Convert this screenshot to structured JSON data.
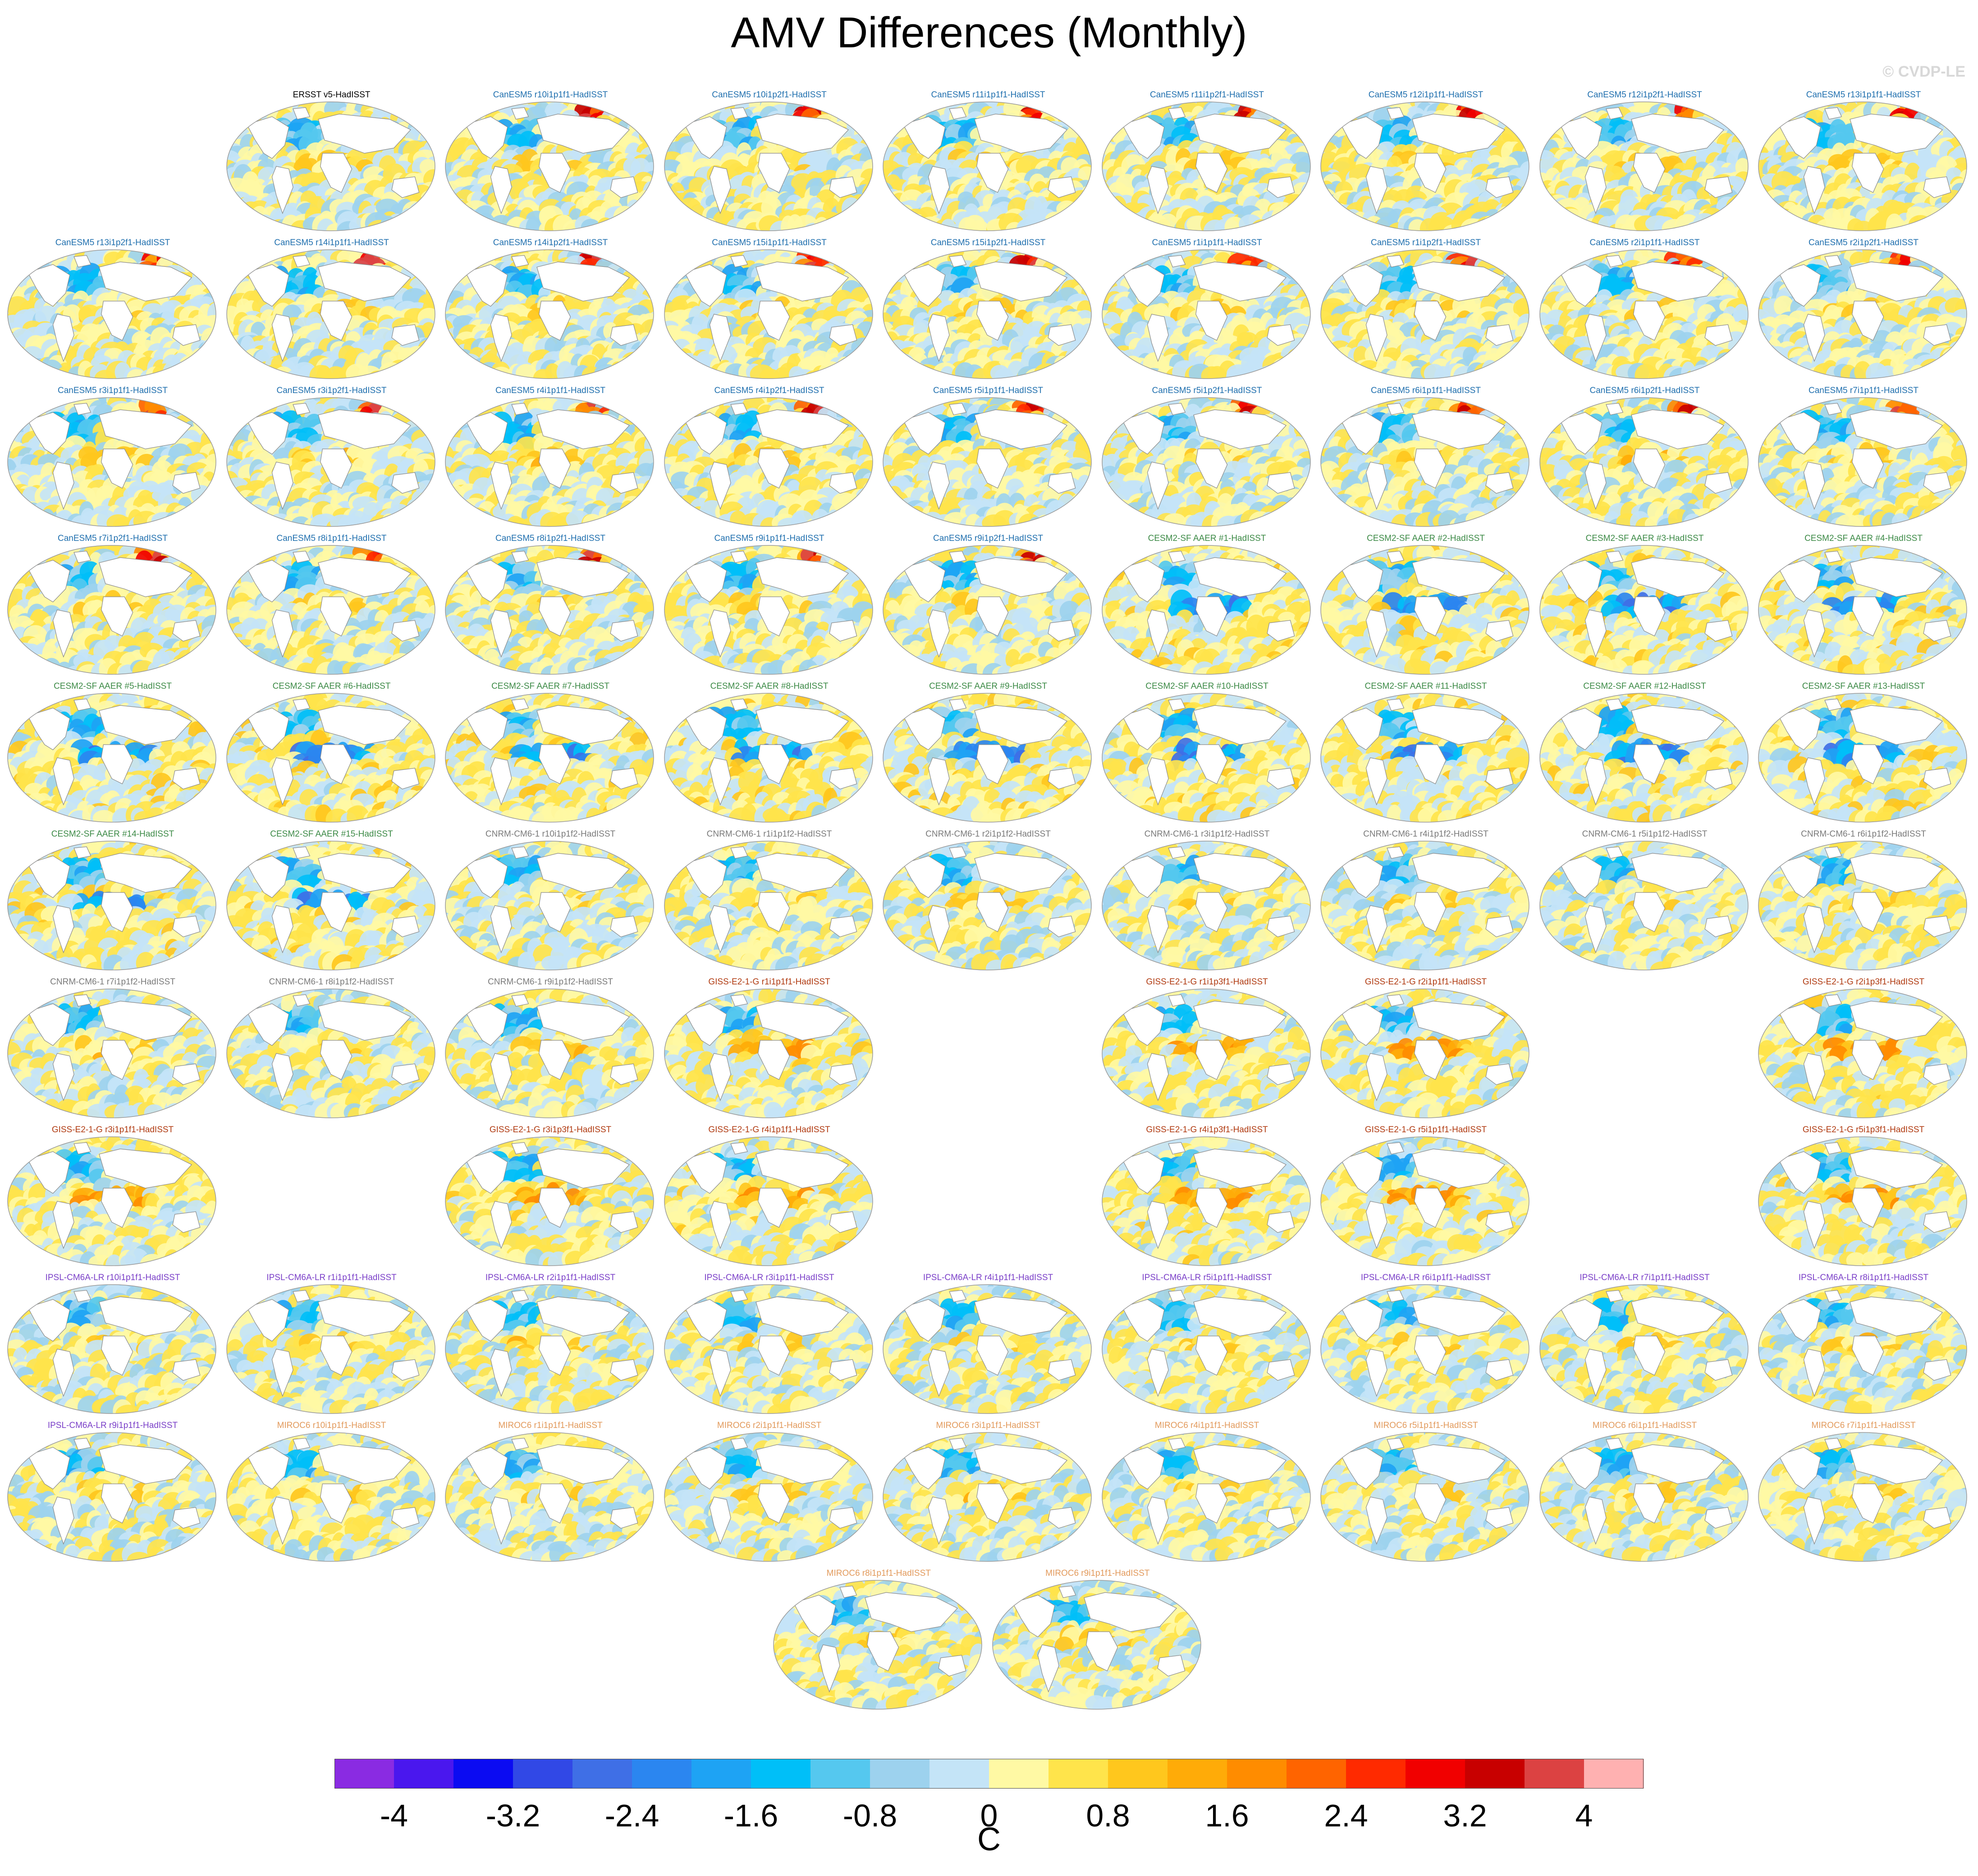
{
  "figure": {
    "title": "AMV Differences (Monthly)",
    "credit": "© CVDP-LE"
  },
  "chart_data": {
    "type": "heatmap",
    "title": "AMV Differences (Monthly)",
    "description_units": "C",
    "colorbar": {
      "unit_label": "C",
      "range": [
        -4.4,
        4.4
      ],
      "levels": [
        -4.4,
        -4,
        -3.6,
        -3.2,
        -2.8,
        -2.4,
        -2,
        -1.6,
        -1.2,
        -0.8,
        -0.4,
        0,
        0.4,
        0.8,
        1.2,
        1.6,
        2,
        2.4,
        2.8,
        3.2,
        3.6,
        4,
        4.4
      ],
      "tick_labels": [
        "-4",
        "-3.2",
        "-2.4",
        "-1.6",
        "-0.8",
        "0",
        "0.8",
        "1.6",
        "2.4",
        "3.2",
        "4"
      ],
      "tick_values": [
        -4,
        -3.2,
        -2.4,
        -1.6,
        -0.8,
        0,
        0.8,
        1.6,
        2.4,
        3.2,
        4
      ],
      "colors": [
        "#8a2be2",
        "#4a17ee",
        "#0b0bf2",
        "#3148e6",
        "#3f6fe6",
        "#2b86f0",
        "#1ea3f4",
        "#00bff8",
        "#55c8ef",
        "#9dd2ee",
        "#c4e4f7",
        "#fff9a4",
        "#ffe44b",
        "#ffc71d",
        "#ffab08",
        "#ff8c00",
        "#ff6400",
        "#ff2a00",
        "#f10000",
        "#c80000",
        "#dc4242",
        "#ffb1b1"
      ]
    },
    "panels": [
      {
        "row": 0,
        "col": 1,
        "label": "ERSST v5-HadISST",
        "group": "obs"
      },
      {
        "row": 0,
        "col": 2,
        "label": "CanESM5 r10i1p1f1-HadISST",
        "group": "CanESM5"
      },
      {
        "row": 0,
        "col": 3,
        "label": "CanESM5 r10i1p2f1-HadISST",
        "group": "CanESM5"
      },
      {
        "row": 0,
        "col": 4,
        "label": "CanESM5 r11i1p1f1-HadISST",
        "group": "CanESM5"
      },
      {
        "row": 0,
        "col": 5,
        "label": "CanESM5 r11i1p2f1-HadISST",
        "group": "CanESM5"
      },
      {
        "row": 0,
        "col": 6,
        "label": "CanESM5 r12i1p1f1-HadISST",
        "group": "CanESM5"
      },
      {
        "row": 0,
        "col": 7,
        "label": "CanESM5 r12i1p2f1-HadISST",
        "group": "CanESM5"
      },
      {
        "row": 0,
        "col": 8,
        "label": "CanESM5 r13i1p1f1-HadISST",
        "group": "CanESM5"
      },
      {
        "row": 1,
        "col": 0,
        "label": "CanESM5 r13i1p2f1-HadISST",
        "group": "CanESM5"
      },
      {
        "row": 1,
        "col": 1,
        "label": "CanESM5 r14i1p1f1-HadISST",
        "group": "CanESM5"
      },
      {
        "row": 1,
        "col": 2,
        "label": "CanESM5 r14i1p2f1-HadISST",
        "group": "CanESM5"
      },
      {
        "row": 1,
        "col": 3,
        "label": "CanESM5 r15i1p1f1-HadISST",
        "group": "CanESM5"
      },
      {
        "row": 1,
        "col": 4,
        "label": "CanESM5 r15i1p2f1-HadISST",
        "group": "CanESM5"
      },
      {
        "row": 1,
        "col": 5,
        "label": "CanESM5 r1i1p1f1-HadISST",
        "group": "CanESM5"
      },
      {
        "row": 1,
        "col": 6,
        "label": "CanESM5 r1i1p2f1-HadISST",
        "group": "CanESM5"
      },
      {
        "row": 1,
        "col": 7,
        "label": "CanESM5 r2i1p1f1-HadISST",
        "group": "CanESM5"
      },
      {
        "row": 1,
        "col": 8,
        "label": "CanESM5 r2i1p2f1-HadISST",
        "group": "CanESM5"
      },
      {
        "row": 2,
        "col": 0,
        "label": "CanESM5 r3i1p1f1-HadISST",
        "group": "CanESM5"
      },
      {
        "row": 2,
        "col": 1,
        "label": "CanESM5 r3i1p2f1-HadISST",
        "group": "CanESM5"
      },
      {
        "row": 2,
        "col": 2,
        "label": "CanESM5 r4i1p1f1-HadISST",
        "group": "CanESM5"
      },
      {
        "row": 2,
        "col": 3,
        "label": "CanESM5 r4i1p2f1-HadISST",
        "group": "CanESM5"
      },
      {
        "row": 2,
        "col": 4,
        "label": "CanESM5 r5i1p1f1-HadISST",
        "group": "CanESM5"
      },
      {
        "row": 2,
        "col": 5,
        "label": "CanESM5 r5i1p2f1-HadISST",
        "group": "CanESM5"
      },
      {
        "row": 2,
        "col": 6,
        "label": "CanESM5 r6i1p1f1-HadISST",
        "group": "CanESM5"
      },
      {
        "row": 2,
        "col": 7,
        "label": "CanESM5 r6i1p2f1-HadISST",
        "group": "CanESM5"
      },
      {
        "row": 2,
        "col": 8,
        "label": "CanESM5 r7i1p1f1-HadISST",
        "group": "CanESM5"
      },
      {
        "row": 3,
        "col": 0,
        "label": "CanESM5 r7i1p2f1-HadISST",
        "group": "CanESM5"
      },
      {
        "row": 3,
        "col": 1,
        "label": "CanESM5 r8i1p1f1-HadISST",
        "group": "CanESM5"
      },
      {
        "row": 3,
        "col": 2,
        "label": "CanESM5 r8i1p2f1-HadISST",
        "group": "CanESM5"
      },
      {
        "row": 3,
        "col": 3,
        "label": "CanESM5 r9i1p1f1-HadISST",
        "group": "CanESM5"
      },
      {
        "row": 3,
        "col": 4,
        "label": "CanESM5 r9i1p2f1-HadISST",
        "group": "CanESM5"
      },
      {
        "row": 3,
        "col": 5,
        "label": "CESM2-SF AAER #1-HadISST",
        "group": "CESM2"
      },
      {
        "row": 3,
        "col": 6,
        "label": "CESM2-SF AAER #2-HadISST",
        "group": "CESM2"
      },
      {
        "row": 3,
        "col": 7,
        "label": "CESM2-SF AAER #3-HadISST",
        "group": "CESM2"
      },
      {
        "row": 3,
        "col": 8,
        "label": "CESM2-SF AAER #4-HadISST",
        "group": "CESM2"
      },
      {
        "row": 4,
        "col": 0,
        "label": "CESM2-SF AAER #5-HadISST",
        "group": "CESM2"
      },
      {
        "row": 4,
        "col": 1,
        "label": "CESM2-SF AAER #6-HadISST",
        "group": "CESM2"
      },
      {
        "row": 4,
        "col": 2,
        "label": "CESM2-SF AAER #7-HadISST",
        "group": "CESM2"
      },
      {
        "row": 4,
        "col": 3,
        "label": "CESM2-SF AAER #8-HadISST",
        "group": "CESM2"
      },
      {
        "row": 4,
        "col": 4,
        "label": "CESM2-SF AAER #9-HadISST",
        "group": "CESM2"
      },
      {
        "row": 4,
        "col": 5,
        "label": "CESM2-SF AAER #10-HadISST",
        "group": "CESM2"
      },
      {
        "row": 4,
        "col": 6,
        "label": "CESM2-SF AAER #11-HadISST",
        "group": "CESM2"
      },
      {
        "row": 4,
        "col": 7,
        "label": "CESM2-SF AAER #12-HadISST",
        "group": "CESM2"
      },
      {
        "row": 4,
        "col": 8,
        "label": "CESM2-SF AAER #13-HadISST",
        "group": "CESM2"
      },
      {
        "row": 5,
        "col": 0,
        "label": "CESM2-SF AAER #14-HadISST",
        "group": "CESM2"
      },
      {
        "row": 5,
        "col": 1,
        "label": "CESM2-SF AAER #15-HadISST",
        "group": "CESM2"
      },
      {
        "row": 5,
        "col": 2,
        "label": "CNRM-CM6-1 r10i1p1f2-HadISST",
        "group": "CNRM"
      },
      {
        "row": 5,
        "col": 3,
        "label": "CNRM-CM6-1 r1i1p1f2-HadISST",
        "group": "CNRM"
      },
      {
        "row": 5,
        "col": 4,
        "label": "CNRM-CM6-1 r2i1p1f2-HadISST",
        "group": "CNRM"
      },
      {
        "row": 5,
        "col": 5,
        "label": "CNRM-CM6-1 r3i1p1f2-HadISST",
        "group": "CNRM"
      },
      {
        "row": 5,
        "col": 6,
        "label": "CNRM-CM6-1 r4i1p1f2-HadISST",
        "group": "CNRM"
      },
      {
        "row": 5,
        "col": 7,
        "label": "CNRM-CM6-1 r5i1p1f2-HadISST",
        "group": "CNRM"
      },
      {
        "row": 5,
        "col": 8,
        "label": "CNRM-CM6-1 r6i1p1f2-HadISST",
        "group": "CNRM"
      },
      {
        "row": 6,
        "col": 0,
        "label": "CNRM-CM6-1 r7i1p1f2-HadISST",
        "group": "CNRM"
      },
      {
        "row": 6,
        "col": 1,
        "label": "CNRM-CM6-1 r8i1p1f2-HadISST",
        "group": "CNRM"
      },
      {
        "row": 6,
        "col": 2,
        "label": "CNRM-CM6-1 r9i1p1f2-HadISST",
        "group": "CNRM"
      },
      {
        "row": 6,
        "col": 3,
        "label": "GISS-E2-1-G r1i1p1f1-HadISST",
        "group": "GISS"
      },
      {
        "row": 6,
        "col": 5,
        "label": "GISS-E2-1-G r1i1p3f1-HadISST",
        "group": "GISS"
      },
      {
        "row": 6,
        "col": 6,
        "label": "GISS-E2-1-G r2i1p1f1-HadISST",
        "group": "GISS"
      },
      {
        "row": 6,
        "col": 8,
        "label": "GISS-E2-1-G r2i1p3f1-HadISST",
        "group": "GISS"
      },
      {
        "row": 7,
        "col": 0,
        "label": "GISS-E2-1-G r3i1p1f1-HadISST",
        "group": "GISS"
      },
      {
        "row": 7,
        "col": 2,
        "label": "GISS-E2-1-G r3i1p3f1-HadISST",
        "group": "GISS"
      },
      {
        "row": 7,
        "col": 3,
        "label": "GISS-E2-1-G r4i1p1f1-HadISST",
        "group": "GISS"
      },
      {
        "row": 7,
        "col": 5,
        "label": "GISS-E2-1-G r4i1p3f1-HadISST",
        "group": "GISS"
      },
      {
        "row": 7,
        "col": 6,
        "label": "GISS-E2-1-G r5i1p1f1-HadISST",
        "group": "GISS"
      },
      {
        "row": 7,
        "col": 8,
        "label": "GISS-E2-1-G r5i1p3f1-HadISST",
        "group": "GISS"
      },
      {
        "row": 8,
        "col": 0,
        "label": "IPSL-CM6A-LR r10i1p1f1-HadISST",
        "group": "IPSL"
      },
      {
        "row": 8,
        "col": 1,
        "label": "IPSL-CM6A-LR r1i1p1f1-HadISST",
        "group": "IPSL"
      },
      {
        "row": 8,
        "col": 2,
        "label": "IPSL-CM6A-LR r2i1p1f1-HadISST",
        "group": "IPSL"
      },
      {
        "row": 8,
        "col": 3,
        "label": "IPSL-CM6A-LR r3i1p1f1-HadISST",
        "group": "IPSL"
      },
      {
        "row": 8,
        "col": 4,
        "label": "IPSL-CM6A-LR r4i1p1f1-HadISST",
        "group": "IPSL"
      },
      {
        "row": 8,
        "col": 5,
        "label": "IPSL-CM6A-LR r5i1p1f1-HadISST",
        "group": "IPSL"
      },
      {
        "row": 8,
        "col": 6,
        "label": "IPSL-CM6A-LR r6i1p1f1-HadISST",
        "group": "IPSL"
      },
      {
        "row": 8,
        "col": 7,
        "label": "IPSL-CM6A-LR r7i1p1f1-HadISST",
        "group": "IPSL"
      },
      {
        "row": 8,
        "col": 8,
        "label": "IPSL-CM6A-LR r8i1p1f1-HadISST",
        "group": "IPSL"
      },
      {
        "row": 9,
        "col": 0,
        "label": "IPSL-CM6A-LR r9i1p1f1-HadISST",
        "group": "IPSL"
      },
      {
        "row": 9,
        "col": 1,
        "label": "MIROC6 r10i1p1f1-HadISST",
        "group": "MIROC6"
      },
      {
        "row": 9,
        "col": 2,
        "label": "MIROC6 r1i1p1f1-HadISST",
        "group": "MIROC6"
      },
      {
        "row": 9,
        "col": 3,
        "label": "MIROC6 r2i1p1f1-HadISST",
        "group": "MIROC6"
      },
      {
        "row": 9,
        "col": 4,
        "label": "MIROC6 r3i1p1f1-HadISST",
        "group": "MIROC6"
      },
      {
        "row": 9,
        "col": 5,
        "label": "MIROC6 r4i1p1f1-HadISST",
        "group": "MIROC6"
      },
      {
        "row": 9,
        "col": 6,
        "label": "MIROC6 r5i1p1f1-HadISST",
        "group": "MIROC6"
      },
      {
        "row": 9,
        "col": 7,
        "label": "MIROC6 r6i1p1f1-HadISST",
        "group": "MIROC6"
      },
      {
        "row": 9,
        "col": 8,
        "label": "MIROC6 r7i1p1f1-HadISST",
        "group": "MIROC6"
      },
      {
        "row": 10,
        "col": 3.5,
        "label": "MIROC6 r8i1p1f1-HadISST",
        "group": "MIROC6"
      },
      {
        "row": 10,
        "col": 4.5,
        "label": "MIROC6 r9i1p1f1-HadISST",
        "group": "MIROC6"
      }
    ],
    "group_label_colors": {
      "obs": "#000000",
      "CanESM5": "#1f6fae",
      "CESM2": "#3c8a46",
      "CNRM": "#7a7a7a",
      "GISS": "#b03a10",
      "IPSL": "#7a3fc8",
      "MIROC6": "#e29a5c"
    }
  }
}
